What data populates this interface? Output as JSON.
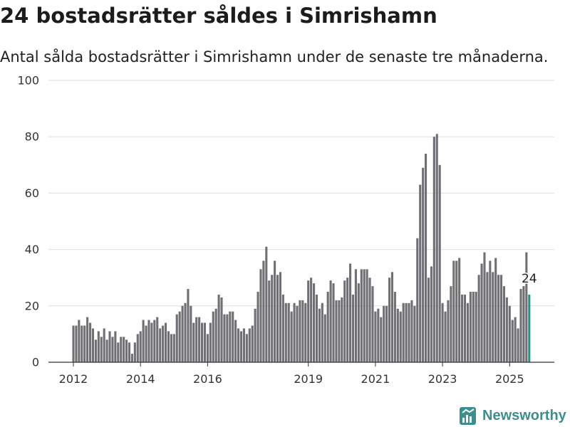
{
  "chart_data": {
    "type": "bar",
    "title": "24 bostadsrätter såldes i Simrishamn",
    "subtitle": "Antal sålda bostadsrätter i Simrishamn under de senaste tre månaderna.",
    "xlabel": "",
    "ylabel": "",
    "x": [
      "2012-01",
      "2012-02",
      "2012-03",
      "2012-04",
      "2012-05",
      "2012-06",
      "2012-07",
      "2012-08",
      "2012-09",
      "2012-10",
      "2012-11",
      "2012-12",
      "2013-01",
      "2013-02",
      "2013-03",
      "2013-04",
      "2013-05",
      "2013-06",
      "2013-07",
      "2013-08",
      "2013-09",
      "2013-10",
      "2013-11",
      "2013-12",
      "2014-01",
      "2014-02",
      "2014-03",
      "2014-04",
      "2014-05",
      "2014-06",
      "2014-07",
      "2014-08",
      "2014-09",
      "2014-10",
      "2014-11",
      "2014-12",
      "2015-01",
      "2015-02",
      "2015-03",
      "2015-04",
      "2015-05",
      "2015-06",
      "2015-07",
      "2015-08",
      "2015-09",
      "2015-10",
      "2015-11",
      "2015-12",
      "2016-01",
      "2016-02",
      "2016-03",
      "2016-04",
      "2016-05",
      "2016-06",
      "2016-07",
      "2016-08",
      "2016-09",
      "2016-10",
      "2016-11",
      "2016-12",
      "2017-01",
      "2017-02",
      "2017-03",
      "2017-04",
      "2017-05",
      "2017-06",
      "2017-07",
      "2017-08",
      "2017-09",
      "2017-10",
      "2017-11",
      "2017-12",
      "2018-01",
      "2018-02",
      "2018-03",
      "2018-04",
      "2018-05",
      "2018-06",
      "2018-07",
      "2018-08",
      "2018-09",
      "2018-10",
      "2018-11",
      "2018-12",
      "2019-01",
      "2019-02",
      "2019-03",
      "2019-04",
      "2019-05",
      "2019-06",
      "2019-07",
      "2019-08",
      "2019-09",
      "2019-10",
      "2019-11",
      "2019-12",
      "2020-01",
      "2020-02",
      "2020-03",
      "2020-04",
      "2020-05",
      "2020-06",
      "2020-07",
      "2020-08",
      "2020-09",
      "2020-10",
      "2020-11",
      "2020-12",
      "2021-01",
      "2021-02",
      "2021-03",
      "2021-04",
      "2021-05",
      "2021-06",
      "2021-07",
      "2021-08",
      "2021-09",
      "2021-10",
      "2021-11",
      "2021-12",
      "2022-01",
      "2022-02",
      "2022-03",
      "2022-04",
      "2022-05",
      "2022-06",
      "2022-07",
      "2022-08",
      "2022-09",
      "2022-10",
      "2022-11",
      "2022-12",
      "2023-01",
      "2023-02",
      "2023-03",
      "2023-04",
      "2023-05",
      "2023-06",
      "2023-07",
      "2023-08",
      "2023-09",
      "2023-10",
      "2023-11",
      "2023-12",
      "2024-01",
      "2024-02",
      "2024-03",
      "2024-04",
      "2024-05",
      "2024-06",
      "2024-07",
      "2024-08",
      "2024-09",
      "2024-10",
      "2024-11",
      "2024-12",
      "2025-01",
      "2025-02",
      "2025-03",
      "2025-04",
      "2025-05",
      "2025-06",
      "2025-07",
      "2025-08"
    ],
    "values": [
      13,
      13,
      15,
      13,
      13,
      16,
      14,
      12,
      8,
      11,
      9,
      12,
      8,
      11,
      9,
      11,
      7,
      9,
      9,
      8,
      7,
      3,
      7,
      10,
      11,
      15,
      13,
      15,
      14,
      15,
      16,
      12,
      13,
      14,
      11,
      10,
      10,
      17,
      18,
      20,
      21,
      26,
      20,
      14,
      16,
      16,
      14,
      14,
      10,
      14,
      18,
      19,
      24,
      23,
      17,
      17,
      18,
      18,
      15,
      12,
      11,
      12,
      10,
      12,
      13,
      19,
      25,
      33,
      36,
      41,
      29,
      31,
      36,
      31,
      32,
      24,
      21,
      21,
      18,
      21,
      20,
      22,
      22,
      21,
      29,
      30,
      28,
      24,
      19,
      21,
      17,
      25,
      29,
      28,
      22,
      22,
      23,
      29,
      30,
      35,
      24,
      33,
      28,
      33,
      33,
      33,
      30,
      27,
      18,
      19,
      16,
      20,
      20,
      30,
      32,
      25,
      19,
      18,
      21,
      21,
      21,
      22,
      20,
      44,
      63,
      69,
      74,
      30,
      34,
      80,
      81,
      70,
      21,
      18,
      22,
      27,
      36,
      36,
      37,
      24,
      24,
      21,
      25,
      25,
      25,
      31,
      35,
      39,
      32,
      36,
      32,
      37,
      31,
      31,
      27,
      23,
      20,
      15,
      16,
      12,
      26,
      27,
      39,
      24
    ],
    "ylim": [
      0,
      100
    ],
    "y_ticks": [
      0,
      20,
      40,
      60,
      80,
      100
    ],
    "x_ticks": [
      "2012",
      "2014",
      "2016",
      "2019",
      "2021",
      "2023",
      "2025"
    ],
    "grid": true,
    "annotations": [
      {
        "x": "2025-08",
        "text": "24"
      }
    ]
  },
  "colors": {
    "bar": "#6f6f74",
    "highlight": "#1a9a8b",
    "grid": "#dedede",
    "axis": "#333333",
    "brand": "#3c8f8c"
  },
  "logo": {
    "text": "Newsworthy",
    "icon": "bar-chart-logo-icon"
  }
}
